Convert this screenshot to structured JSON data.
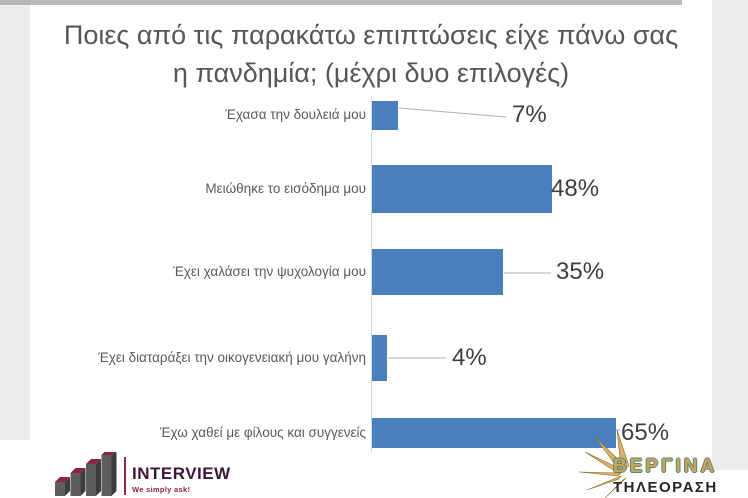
{
  "title": {
    "line1": "Ποιες από τις παρακάτω επιπτώσεις είχε πάνω σας",
    "line2": "η πανδημία; (μέχρι δυο επιλογές)"
  },
  "chart_data": {
    "type": "bar",
    "orientation": "horizontal",
    "title": "Ποιες από τις παρακάτω επιπτώσεις είχε πάνω σας η πανδημία; (μέχρι δυο επιλογές)",
    "categories": [
      "Έχασα την δουλειά μου",
      "Μειώθηκε το εισόδημα μου",
      "Έχει χαλάσει την ψυχολογία μου",
      "Έχει διαταράξει την οικογενειακή μου γαλήνη",
      "Έχω χαθεί με φίλους και συγγενείς"
    ],
    "values": [
      7,
      48,
      35,
      4,
      65
    ],
    "value_labels": [
      "7%",
      "48%",
      "35%",
      "4%",
      "65%"
    ],
    "unit": "%",
    "grid": false,
    "legend": false,
    "xlim": [
      0,
      100
    ],
    "bar_color": "#4a7ebc"
  },
  "footer": {
    "interview": {
      "name": "INTERVIEW",
      "tagline": "We simply ask!"
    },
    "vergina": {
      "line1": "ΒΕΡΓΙΝΑ",
      "line2": "ΤΗΛΕΟΡΑΣΗ"
    }
  },
  "colors": {
    "bar": "#4a7ebc",
    "title_text": "#565656",
    "value_text": "#3f3f3f",
    "leader_line": "#b0b0b0",
    "axis_line": "#d5d5d5",
    "interview_maroon": "#8e2344",
    "interview_text": "#3e1638",
    "vergina_gold": "#d9b266",
    "vergina_teal": "#4d8a80"
  }
}
